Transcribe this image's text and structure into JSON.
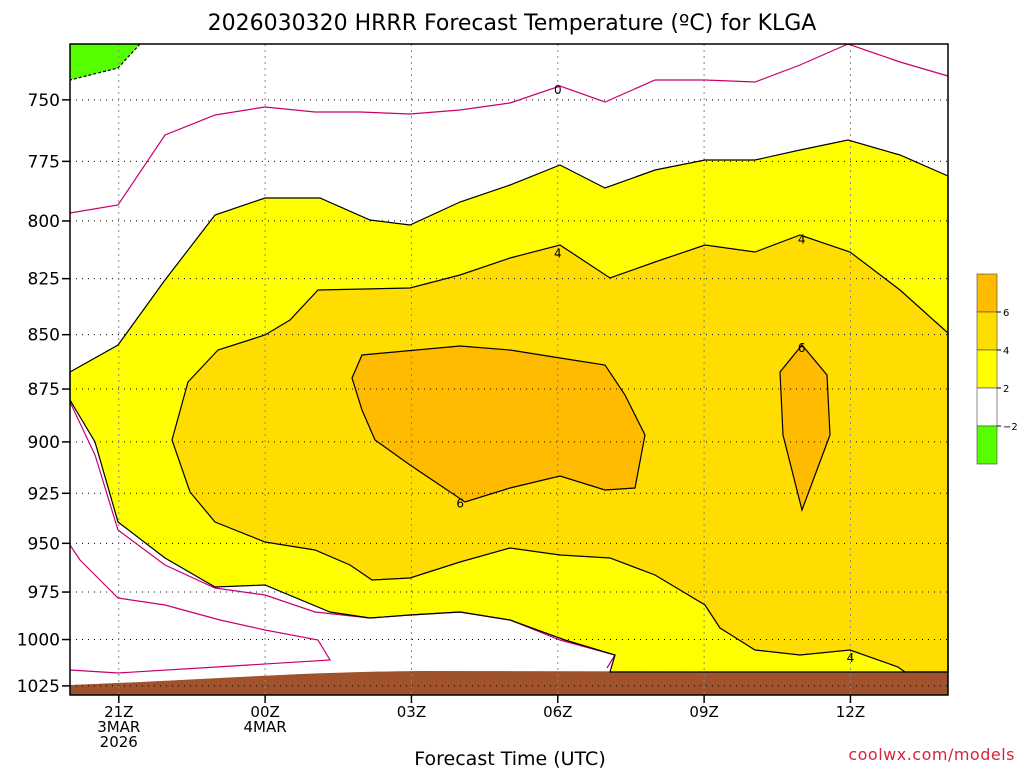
{
  "colors": {
    "green": "#55ff00",
    "white": "#ffffff",
    "yellow": "#ffff00",
    "gold": "#ffdd00",
    "orange": "#ffbb00",
    "ground": "#a0522d",
    "freezing_line": "#c8006e",
    "contour": "#000000",
    "credit": "#d6253a"
  },
  "chart_data": {
    "type": "contour",
    "title": "2026030320 HRRR Forecast Temperature (ºC) for KLGA",
    "xlabel": "Forecast Time (UTC)",
    "ylabel": "",
    "credit": "coolwx.com/models",
    "y_axis": {
      "unit": "hPa",
      "ticks": [
        750,
        775,
        800,
        825,
        850,
        875,
        900,
        925,
        950,
        975,
        1000,
        1025
      ],
      "range": [
        728,
        1030
      ],
      "scale": "log-pressure"
    },
    "x_axis": {
      "unit": "hours since 2026030320Z",
      "range": [
        0,
        18
      ],
      "ticks": [
        {
          "hour": 1,
          "lines": [
            "21Z",
            "3MAR",
            "2026"
          ]
        },
        {
          "hour": 4,
          "lines": [
            "00Z",
            "4MAR"
          ]
        },
        {
          "hour": 7,
          "lines": [
            "03Z"
          ]
        },
        {
          "hour": 10,
          "lines": [
            "06Z"
          ]
        },
        {
          "hour": 13,
          "lines": [
            "09Z"
          ]
        },
        {
          "hour": 16,
          "lines": [
            "12Z"
          ]
        }
      ]
    },
    "grid": true,
    "colorbar": {
      "placement": "right",
      "levels": [
        -2,
        2,
        4,
        6
      ],
      "tick_labels": [
        "−2",
        "2",
        "4",
        "6"
      ],
      "bands": [
        {
          "range": "< -2",
          "color": "#55ff00"
        },
        {
          "range": "-2 to 2",
          "color": "#ffffff"
        },
        {
          "range": "2 to 4",
          "color": "#ffff00"
        },
        {
          "range": "4 to 6",
          "color": "#ffdd00"
        },
        {
          "range": "> 6",
          "color": "#ffbb00"
        }
      ]
    },
    "contour_labels": [
      {
        "label": "0",
        "hour": 10.0,
        "pressure": 746
      },
      {
        "label": "4",
        "hour": 10.0,
        "pressure": 814
      },
      {
        "label": "4",
        "hour": 15.0,
        "pressure": 808
      },
      {
        "label": "6",
        "hour": 15.0,
        "pressure": 856
      },
      {
        "label": "6",
        "hour": 8.0,
        "pressure": 930
      },
      {
        "label": "4",
        "hour": 16.0,
        "pressure": 1010
      }
    ]
  }
}
